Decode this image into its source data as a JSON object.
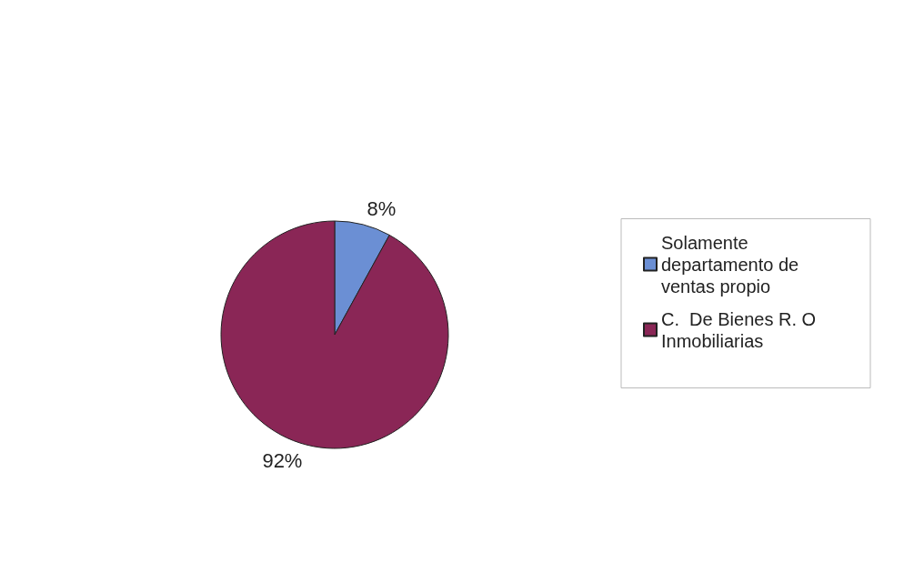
{
  "chart_data": {
    "type": "pie",
    "categories": [
      "Solamente departamento de ventas propio",
      "C.  De Bienes R. O Inmobiliarias"
    ],
    "values": [
      8,
      92
    ],
    "colors": [
      "#6b8fd4",
      "#8a2656"
    ],
    "value_labels": [
      "8%",
      "92%"
    ],
    "legend": "right"
  }
}
